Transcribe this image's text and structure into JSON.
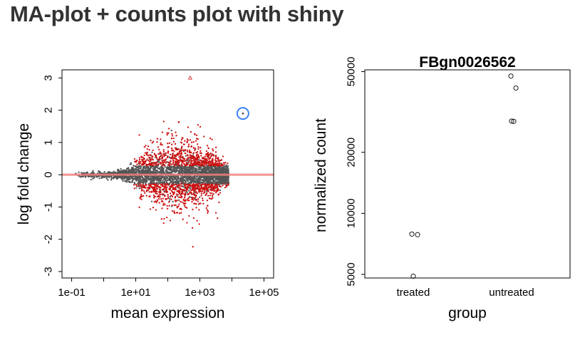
{
  "page": {
    "title": "MA-plot + counts plot with shiny"
  },
  "chart_data": [
    {
      "type": "scatter",
      "title": "",
      "xlabel": "mean expression",
      "ylabel": "log fold change",
      "xscale": "log10",
      "xlim": [
        0.05,
        200000
      ],
      "ylim": [
        -3.2,
        3.25
      ],
      "x_tick_labels": [
        "1e-01",
        "1e+01",
        "1e+03",
        "1e+05"
      ],
      "x_tick_values": [
        0.1,
        10,
        1000,
        100000
      ],
      "y_tick_labels": [
        "-3",
        "-2",
        "-1",
        "0",
        "1",
        "2",
        "3"
      ],
      "y_tick_values": [
        -3,
        -2,
        -1,
        0,
        1,
        2,
        3
      ],
      "reference_line": {
        "y": 0,
        "color": "#f08080"
      },
      "colors": {
        "not_significant": "#555555",
        "significant": "#cc1111",
        "highlight_circle": "#3b82f6"
      },
      "highlight": {
        "x": 22000,
        "y": 1.9
      },
      "off_scale_point": {
        "x": 500,
        "y": 3.0,
        "marker": "triangle"
      },
      "grid": false,
      "legend": "none"
    },
    {
      "type": "scatter",
      "title": "FBgn0026562",
      "xlabel": "group",
      "ylabel": "normalized count",
      "yscale": "log",
      "ylim": [
        4800,
        51000
      ],
      "categories": [
        "treated",
        "untreated"
      ],
      "y_tick_labels": [
        "5000",
        "10000",
        "20000",
        "50000"
      ],
      "y_tick_values": [
        5000,
        10000,
        20000,
        50000
      ],
      "points": [
        {
          "group": "treated",
          "y": 7900
        },
        {
          "group": "treated",
          "y": 7850
        },
        {
          "group": "treated",
          "y": 4900
        },
        {
          "group": "untreated",
          "y": 47500
        },
        {
          "group": "untreated",
          "y": 41500
        },
        {
          "group": "untreated",
          "y": 28500
        },
        {
          "group": "untreated",
          "y": 28400
        }
      ],
      "grid": false,
      "legend": "none"
    }
  ]
}
